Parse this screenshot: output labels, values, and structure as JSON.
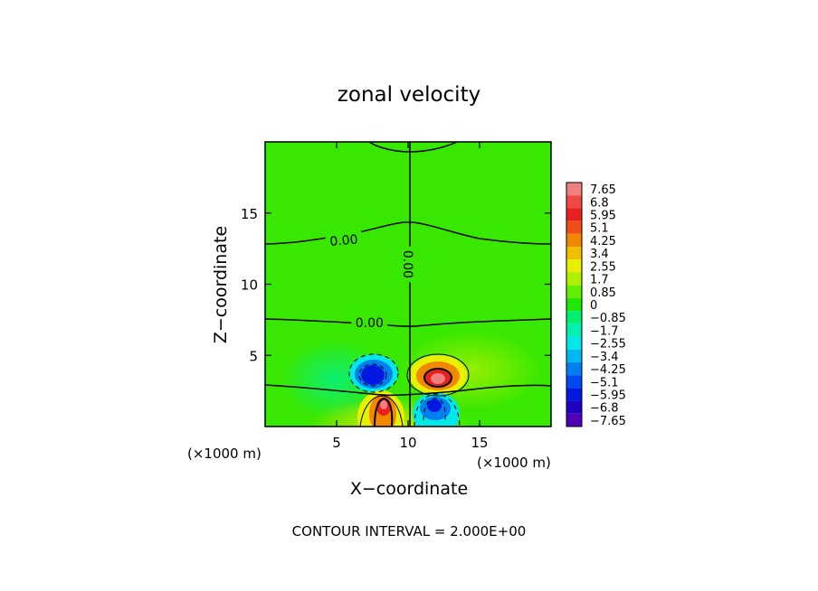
{
  "chart_data": {
    "type": "heatmap",
    "title": "zonal velocity",
    "xlabel": "X−coordinate",
    "ylabel": "Z−coordinate",
    "x_unit": "(×1000 m)",
    "z_unit": "(×1000 m)",
    "xlim": [
      0,
      20
    ],
    "zlim": [
      0,
      20
    ],
    "x_ticks": [
      5,
      10,
      15
    ],
    "z_ticks": [
      5,
      10,
      15
    ],
    "x_tick_labels": [
      "5",
      "10",
      "15"
    ],
    "z_tick_labels": [
      "5",
      "10",
      "15"
    ],
    "contour_interval_text": "CONTOUR INTERVAL = 2.000E+00",
    "contour_labels": [
      {
        "text": "0.00",
        "x": 5.5,
        "z": 13.1,
        "angle": -5
      },
      {
        "text": "0.00",
        "x": 7.3,
        "z": 7.3,
        "angle": 0
      },
      {
        "text": "0.00",
        "x": 10.0,
        "z": 11.4,
        "angle": 90
      }
    ],
    "colorbar": {
      "levels": [
        "7.65",
        "6.8",
        "5.95",
        "5.1",
        "4.25",
        "3.4",
        "2.55",
        "1.7",
        "0.85",
        "0",
        "−0.85",
        "−1.7",
        "−2.55",
        "−3.4",
        "−4.25",
        "−5.1",
        "−5.95",
        "−6.8",
        "−7.65"
      ],
      "colors": [
        "#f08080",
        "#f04848",
        "#e82020",
        "#f05018",
        "#f08800",
        "#f0c000",
        "#e8f000",
        "#b0f000",
        "#60f000",
        "#20e800",
        "#00f070",
        "#00f0b0",
        "#00e8e8",
        "#00b8f0",
        "#0080f0",
        "#0048f0",
        "#0018e0",
        "#2000c0",
        "#5000b8"
      ]
    },
    "features": [
      {
        "kind": "max",
        "x": 12.0,
        "z": 3.4,
        "value": 6.5
      },
      {
        "kind": "min",
        "x": 8.0,
        "z": 3.6,
        "value": -5.5
      },
      {
        "kind": "max",
        "x": 8.5,
        "z": 1.4,
        "value": 6.0
      },
      {
        "kind": "min",
        "x": 11.8,
        "z": 1.4,
        "value": -4.5
      }
    ],
    "background_value": 0.5
  }
}
